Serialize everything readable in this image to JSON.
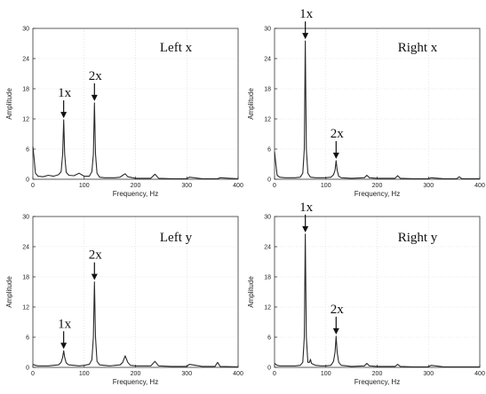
{
  "colors": {
    "spectrum": "#2a2a2a",
    "axes": "#333333",
    "text": "#111111"
  },
  "chart_data": [
    {
      "type": "line",
      "title": "Left x",
      "xlabel": "Frequency, Hz",
      "ylabel": "Amplitude",
      "xlim": [
        0,
        400
      ],
      "ylim": [
        0,
        30
      ],
      "xticks": [
        "0",
        "100",
        "200",
        "300",
        "400"
      ],
      "yticks": [
        "0",
        "6",
        "12",
        "18",
        "24",
        "30"
      ],
      "grid": true,
      "series": [
        {
          "x": [
            0,
            2,
            5,
            10,
            20,
            30,
            40,
            50,
            55,
            58,
            60,
            62,
            65,
            70,
            80,
            90,
            100,
            110,
            115,
            118,
            120,
            122,
            125,
            130,
            140,
            150,
            160,
            170,
            175,
            180,
            185,
            200,
            230,
            238,
            245,
            270,
            300,
            305,
            330,
            360,
            365,
            400
          ],
          "y": [
            6.5,
            4.5,
            1.2,
            0.6,
            0.5,
            0.8,
            0.6,
            0.9,
            1.5,
            5,
            11.8,
            5,
            1.4,
            0.8,
            0.7,
            1.2,
            0.6,
            0.6,
            1.5,
            5,
            15.2,
            5,
            1.2,
            0.4,
            0.3,
            0.3,
            0.3,
            0.4,
            0.8,
            1.1,
            0.5,
            0.2,
            0.2,
            1.0,
            0.2,
            0.1,
            0.1,
            0.4,
            0.1,
            0.1,
            0.3,
            0.1
          ]
        }
      ],
      "annotations": [
        {
          "text": "1x",
          "x": 60,
          "y": 11.8
        },
        {
          "text": "2x",
          "x": 120,
          "y": 15.2
        }
      ]
    },
    {
      "type": "line",
      "title": "Right x",
      "xlabel": "Frequency, Hz",
      "ylabel": "Amplitude",
      "xlim": [
        0,
        400
      ],
      "ylim": [
        0,
        30
      ],
      "xticks": [
        "0",
        "100",
        "200",
        "300",
        "400"
      ],
      "yticks": [
        "0",
        "6",
        "12",
        "18",
        "24",
        "30"
      ],
      "grid": true,
      "series": [
        {
          "x": [
            0,
            2,
            5,
            10,
            20,
            30,
            40,
            50,
            55,
            58,
            60,
            62,
            65,
            70,
            80,
            90,
            100,
            110,
            115,
            118,
            120,
            122,
            125,
            130,
            150,
            175,
            180,
            185,
            200,
            235,
            240,
            245,
            270,
            300,
            305,
            330,
            355,
            360,
            365,
            400
          ],
          "y": [
            5.5,
            3.5,
            0.8,
            0.4,
            0.3,
            0.3,
            0.3,
            0.4,
            1.2,
            6,
            27.5,
            6,
            1.2,
            0.4,
            0.3,
            0.3,
            0.3,
            0.4,
            0.9,
            1.8,
            3.7,
            1.8,
            0.6,
            0.3,
            0.2,
            0.3,
            0.8,
            0.3,
            0.2,
            0.2,
            0.7,
            0.2,
            0.1,
            0.1,
            0.3,
            0.1,
            0.1,
            0.5,
            0.1,
            0.1
          ]
        }
      ],
      "annotations": [
        {
          "text": "1x",
          "x": 60,
          "y": 27.5
        },
        {
          "text": "2x",
          "x": 120,
          "y": 3.7
        }
      ]
    },
    {
      "type": "line",
      "title": "Left y",
      "xlabel": "Frequency, Hz",
      "ylabel": "Amplitude",
      "xlim": [
        0,
        400
      ],
      "ylim": [
        0,
        30
      ],
      "xticks": [
        "0",
        "100",
        "200",
        "300",
        "400"
      ],
      "yticks": [
        "0",
        "6",
        "12",
        "18",
        "24",
        "30"
      ],
      "grid": true,
      "series": [
        {
          "x": [
            0,
            5,
            10,
            20,
            30,
            40,
            50,
            55,
            58,
            60,
            62,
            65,
            70,
            80,
            90,
            100,
            110,
            115,
            118,
            120,
            122,
            125,
            130,
            150,
            170,
            175,
            180,
            185,
            190,
            200,
            230,
            238,
            245,
            270,
            300,
            305,
            330,
            355,
            360,
            365,
            400
          ],
          "y": [
            0.6,
            0.4,
            0.3,
            0.3,
            0.3,
            0.4,
            0.5,
            1.0,
            2.0,
            3.3,
            2.0,
            0.9,
            0.5,
            0.4,
            0.3,
            0.4,
            0.6,
            1.5,
            6,
            17.0,
            6,
            1.2,
            0.5,
            0.3,
            0.5,
            1.0,
            2.3,
            1.0,
            0.4,
            0.3,
            0.3,
            1.2,
            0.3,
            0.2,
            0.2,
            0.6,
            0.2,
            0.2,
            1.0,
            0.2,
            0.1
          ]
        }
      ],
      "annotations": [
        {
          "text": "1x",
          "x": 60,
          "y": 3.3
        },
        {
          "text": "2x",
          "x": 120,
          "y": 17.0
        }
      ]
    },
    {
      "type": "line",
      "title": "Right y",
      "xlabel": "Frequency, Hz",
      "ylabel": "Amplitude",
      "xlim": [
        0,
        400
      ],
      "ylim": [
        0,
        30
      ],
      "xticks": [
        "0",
        "100",
        "200",
        "300",
        "400"
      ],
      "yticks": [
        "0",
        "6",
        "12",
        "18",
        "24",
        "30"
      ],
      "grid": true,
      "series": [
        {
          "x": [
            0,
            5,
            10,
            20,
            30,
            40,
            50,
            55,
            58,
            60,
            62,
            65,
            68,
            70,
            72,
            80,
            90,
            100,
            110,
            115,
            118,
            120,
            122,
            125,
            130,
            150,
            175,
            180,
            185,
            200,
            235,
            240,
            245,
            270,
            300,
            305,
            330,
            360,
            400
          ],
          "y": [
            0.8,
            0.4,
            0.3,
            0.3,
            0.3,
            0.3,
            0.4,
            1.0,
            6,
            26.5,
            6,
            1.0,
            1.0,
            1.6,
            0.8,
            0.4,
            0.3,
            0.3,
            0.4,
            1.2,
            3,
            6.2,
            3,
            1.0,
            0.4,
            0.2,
            0.3,
            0.8,
            0.3,
            0.2,
            0.2,
            0.6,
            0.2,
            0.1,
            0.1,
            0.4,
            0.1,
            0.1,
            0.1
          ]
        }
      ],
      "annotations": [
        {
          "text": "1x",
          "x": 60,
          "y": 26.5
        },
        {
          "text": "2x",
          "x": 120,
          "y": 6.2
        }
      ]
    }
  ]
}
